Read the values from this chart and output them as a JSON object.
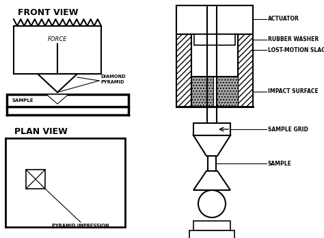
{
  "bg_color": "#ffffff",
  "line_color": "#000000",
  "title_front": "FRONT VIEW",
  "title_plan": "PLAN VIEW",
  "front_view_label": "FORCE",
  "front_sample_label": "SAMPLE",
  "front_pyramid_label": "DIAMOND\nPYRAMID",
  "plan_impression_label": "PYRAMID IMPRESSION",
  "lw": 1.5,
  "label_fs": 5.5
}
